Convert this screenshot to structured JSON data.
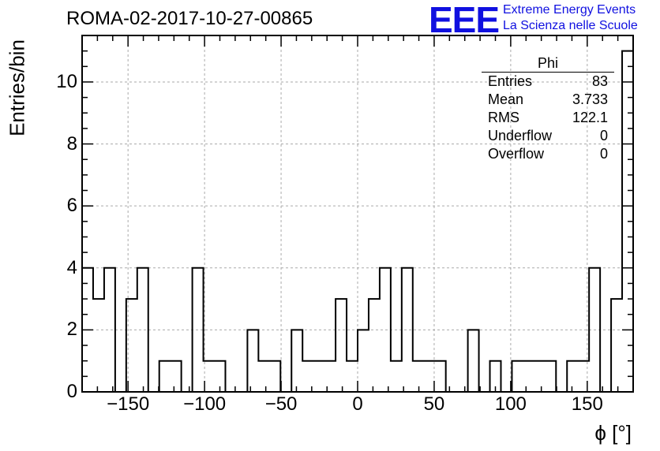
{
  "chart_data": {
    "type": "histogram",
    "title": "ROMA-02-2017-10-27-00865",
    "xlabel": "ϕ [°]",
    "ylabel": "Entries/bin",
    "xlim": [
      -180,
      180
    ],
    "ylim": [
      0,
      11.5
    ],
    "grid": true,
    "bin_width": 7.2,
    "x_ticks": [
      -150,
      -100,
      -50,
      0,
      50,
      100,
      150
    ],
    "x_tick_labels": [
      "−150",
      "−100",
      "−50",
      "0",
      "50",
      "100",
      "150"
    ],
    "y_ticks": [
      0,
      2,
      4,
      6,
      8,
      10
    ],
    "y_tick_labels": [
      "0",
      "2",
      "4",
      "6",
      "8",
      "10"
    ],
    "bin_edges_start": -180,
    "values": [
      4,
      3,
      4,
      0,
      3,
      4,
      0,
      1,
      1,
      0,
      4,
      1,
      1,
      0,
      0,
      2,
      1,
      1,
      0,
      2,
      1,
      1,
      1,
      3,
      1,
      2,
      3,
      4,
      1,
      4,
      1,
      1,
      1,
      0,
      0,
      2,
      0,
      1,
      0,
      1,
      1,
      1,
      1,
      0,
      1,
      1,
      4,
      0,
      3,
      11
    ]
  },
  "stats_box": {
    "title": "Phi",
    "rows": [
      {
        "label": "Entries",
        "value": "83"
      },
      {
        "label": "Mean",
        "value": "3.733"
      },
      {
        "label": "RMS",
        "value": "122.1"
      },
      {
        "label": "Underflow",
        "value": "0"
      },
      {
        "label": "Overflow",
        "value": "0"
      }
    ]
  },
  "logo": {
    "mark": "EEE",
    "line1": "Extreme Energy Events",
    "line2": "La Scienza nelle Scuole",
    "color": "#1010e0"
  }
}
